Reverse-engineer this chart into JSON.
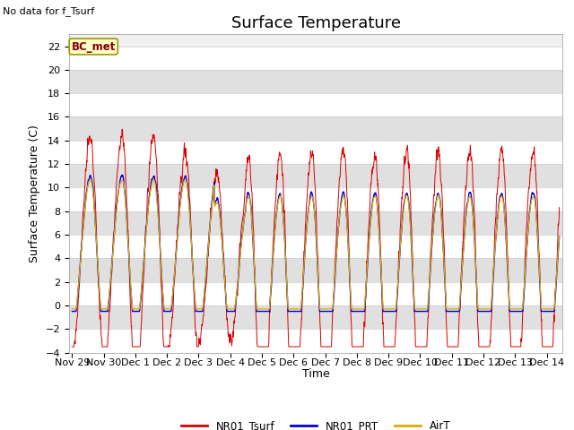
{
  "title": "Surface Temperature",
  "ylabel": "Surface Temperature (C)",
  "xlabel": "Time",
  "annotation": "No data for f_Tsurf",
  "bc_label": "BC_met",
  "ylim": [
    -4,
    23
  ],
  "yticks": [
    -4,
    -2,
    0,
    2,
    4,
    6,
    8,
    10,
    12,
    14,
    16,
    18,
    20,
    22
  ],
  "legend_labels": [
    "NR01_Tsurf",
    "NR01_PRT",
    "AirT"
  ],
  "line_colors": [
    "#dd0000",
    "#0000dd",
    "#ddaa00"
  ],
  "background_color": "#ffffff",
  "plot_bg_color": "#f0f0f0",
  "title_fontsize": 13,
  "label_fontsize": 9,
  "tick_fontsize": 8,
  "band_colors": [
    "#ffffff",
    "#e0e0e0"
  ],
  "tick_labels": [
    "Nov 29",
    "Nov 30",
    "Dec 1",
    "Dec 2",
    "Dec 3",
    "Dec 4",
    "Dec 5",
    "Dec 6",
    "Dec 7",
    "Dec 8",
    "Dec 9",
    "Dec 10",
    "Dec 11",
    "Dec 12",
    "Dec 13",
    "Dec 14"
  ]
}
